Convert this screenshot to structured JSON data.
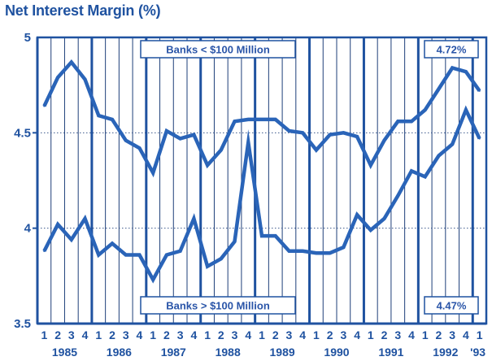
{
  "chart_data": {
    "type": "line",
    "title": "Net Interest Margin (%)",
    "ylim": [
      3.5,
      5
    ],
    "yticks": [
      "3.5",
      "4",
      "4.5",
      "5"
    ],
    "quarter_labels": [
      "1",
      "2",
      "3",
      "4",
      "1",
      "2",
      "3",
      "4",
      "1",
      "2",
      "3",
      "4",
      "1",
      "2",
      "3",
      "4",
      "1",
      "2",
      "3",
      "4",
      "1",
      "2",
      "3",
      "4",
      "1",
      "2",
      "3",
      "4",
      "1",
      "2",
      "3",
      "4",
      "1"
    ],
    "year_labels": [
      "1985",
      "1986",
      "1987",
      "1988",
      "1989",
      "1990",
      "1991",
      "1992",
      "'93"
    ],
    "grid": true,
    "series": [
      {
        "name": "Banks < $100 Million",
        "end_label": "4.72%",
        "values": [
          4.64,
          4.79,
          4.87,
          4.78,
          4.59,
          4.57,
          4.46,
          4.42,
          4.29,
          4.51,
          4.47,
          4.49,
          4.33,
          4.41,
          4.56,
          4.57,
          4.57,
          4.57,
          4.51,
          4.5,
          4.41,
          4.49,
          4.5,
          4.48,
          4.33,
          4.46,
          4.56,
          4.56,
          4.62,
          4.73,
          4.84,
          4.82,
          4.72
        ]
      },
      {
        "name": "Banks > $100 Million",
        "end_label": "4.47%",
        "values": [
          3.88,
          4.02,
          3.94,
          4.05,
          3.86,
          3.92,
          3.86,
          3.86,
          3.73,
          3.86,
          3.88,
          4.05,
          3.8,
          3.84,
          3.93,
          4.45,
          3.96,
          3.96,
          3.88,
          3.88,
          3.87,
          3.87,
          3.9,
          4.07,
          3.99,
          4.05,
          4.17,
          4.3,
          4.27,
          4.38,
          4.44,
          4.62,
          4.47
        ]
      }
    ]
  },
  "colors": {
    "axis": "#1f52a0",
    "line": "#2a64b8",
    "grid": "#1e3f7a",
    "label_text": "#2a55a8"
  }
}
